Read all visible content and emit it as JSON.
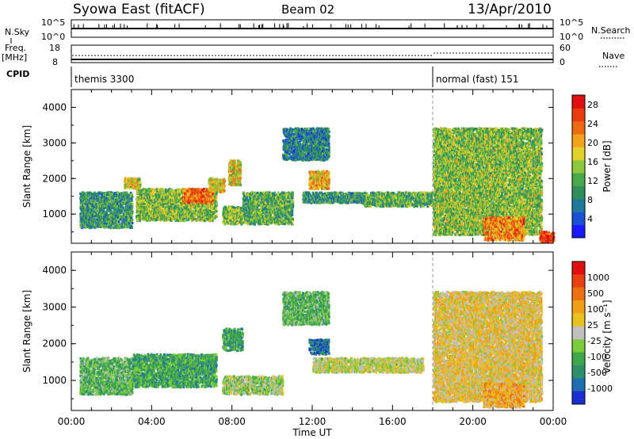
{
  "header": {
    "station": "Syowa East (fitACF)",
    "beam": "Beam 02",
    "date": "13/Apr/2010"
  },
  "strips": {
    "nsky_label": "N.Sky",
    "nsearch_label": "N.Search",
    "nsky_ticks": [
      "10^5",
      "10^0"
    ],
    "nsearch_ticks": [
      "10^5",
      "10^0"
    ],
    "freq_label_line1": "Freq.",
    "freq_label_line2": "[MHz]",
    "freq_ticks": [
      "18",
      "8"
    ],
    "nave_label": "Nave",
    "nave_ticks": [
      "60",
      "0"
    ],
    "cpid_label": "CPID",
    "cpid_modes": [
      {
        "start_hour": 0.0,
        "label": "themis 3300"
      },
      {
        "start_hour": 18.0,
        "label": "normal (fast) 151"
      }
    ]
  },
  "chart_data": [
    {
      "type": "heatmap",
      "panel": "power",
      "xlabel": "",
      "ylabel": "Slant Range [km]",
      "xlim": [
        0,
        24
      ],
      "ylim": [
        180,
        4500
      ],
      "yticks": [
        "1000",
        "2000",
        "3000",
        "4000"
      ],
      "colorbar": {
        "label": "Power [dB]",
        "ticks": [
          "4",
          "8",
          "12",
          "16",
          "20",
          "24",
          "28"
        ],
        "range": [
          0,
          30
        ],
        "colors": [
          "#1a1aff",
          "#1a4fd6",
          "#1f7a9a",
          "#2f8f5c",
          "#4aa84a",
          "#8ec63f",
          "#e2d12a",
          "#f2a21c",
          "#ee6a12",
          "#e83c10",
          "#e01010"
        ]
      },
      "mode_change_hour": 18.0,
      "echo_regions": [
        {
          "t0": 0.4,
          "t1": 3.0,
          "r0": 600,
          "r1": 1600,
          "level": 10
        },
        {
          "t0": 2.6,
          "t1": 3.4,
          "r0": 1700,
          "r1": 2000,
          "level": 18
        },
        {
          "t0": 3.2,
          "t1": 7.2,
          "r0": 800,
          "r1": 1700,
          "level": 14
        },
        {
          "t0": 5.5,
          "t1": 7.0,
          "r0": 1300,
          "r1": 1700,
          "level": 24
        },
        {
          "t0": 6.8,
          "t1": 7.6,
          "r0": 1600,
          "r1": 2000,
          "level": 18
        },
        {
          "t0": 7.5,
          "t1": 8.5,
          "r0": 700,
          "r1": 1200,
          "level": 14
        },
        {
          "t0": 7.8,
          "t1": 8.4,
          "r0": 1800,
          "r1": 2500,
          "level": 18
        },
        {
          "t0": 8.5,
          "t1": 11.0,
          "r0": 700,
          "r1": 1600,
          "level": 12
        },
        {
          "t0": 10.5,
          "t1": 12.8,
          "r0": 2500,
          "r1": 3400,
          "level": 8
        },
        {
          "t0": 11.5,
          "t1": 14.5,
          "r0": 1300,
          "r1": 1600,
          "level": 10
        },
        {
          "t0": 11.8,
          "t1": 12.8,
          "r0": 1700,
          "r1": 2200,
          "level": 20
        },
        {
          "t0": 14.5,
          "t1": 18.0,
          "r0": 1200,
          "r1": 1600,
          "level": 12
        },
        {
          "t0": 18.0,
          "t1": 23.4,
          "r0": 400,
          "r1": 3400,
          "level": 14
        },
        {
          "t0": 20.5,
          "t1": 22.5,
          "r0": 250,
          "r1": 900,
          "level": 22
        },
        {
          "t0": 23.3,
          "t1": 24.0,
          "r0": 200,
          "r1": 500,
          "level": 26
        }
      ]
    },
    {
      "type": "heatmap",
      "panel": "velocity",
      "xlabel": "Time UT",
      "ylabel": "Slant Range [km]",
      "xlim": [
        0,
        24
      ],
      "ylim": [
        180,
        4500
      ],
      "xticks": [
        "00:00",
        "04:00",
        "08:00",
        "12:00",
        "16:00",
        "20:00",
        "00:00"
      ],
      "yticks": [
        "1000",
        "2000",
        "3000",
        "4000"
      ],
      "colorbar": {
        "label": "Velocity [m s⁻¹]",
        "ticks": [
          "1000",
          "500",
          "100",
          "25",
          "-25",
          "-100",
          "-500",
          "-1000"
        ],
        "range": [
          -1000,
          1000
        ],
        "colors": [
          "#1a2fd0",
          "#1f6fb0",
          "#2f8f6a",
          "#3fa84a",
          "#7ccd3c",
          "#c0c0c0",
          "#e8c020",
          "#f0a018",
          "#ee7014",
          "#e84010",
          "#e01010"
        ]
      },
      "mode_change_hour": 18.0,
      "echo_regions": [
        {
          "t0": 0.4,
          "t1": 3.0,
          "r0": 600,
          "r1": 1600,
          "level": -300
        },
        {
          "t0": 3.0,
          "t1": 7.2,
          "r0": 800,
          "r1": 1700,
          "level": -400
        },
        {
          "t0": 7.5,
          "t1": 8.5,
          "r0": 1800,
          "r1": 2400,
          "level": -450
        },
        {
          "t0": 7.5,
          "t1": 10.5,
          "r0": 600,
          "r1": 1100,
          "level": -120
        },
        {
          "t0": 10.5,
          "t1": 12.8,
          "r0": 2500,
          "r1": 3400,
          "level": -300
        },
        {
          "t0": 11.8,
          "t1": 12.8,
          "r0": 1700,
          "r1": 2100,
          "level": -700
        },
        {
          "t0": 12.0,
          "t1": 17.5,
          "r0": 1200,
          "r1": 1600,
          "level": 0
        },
        {
          "t0": 18.0,
          "t1": 23.4,
          "r0": 400,
          "r1": 3400,
          "level": 150
        },
        {
          "t0": 20.5,
          "t1": 22.5,
          "r0": 250,
          "r1": 900,
          "level": 300
        }
      ]
    }
  ]
}
